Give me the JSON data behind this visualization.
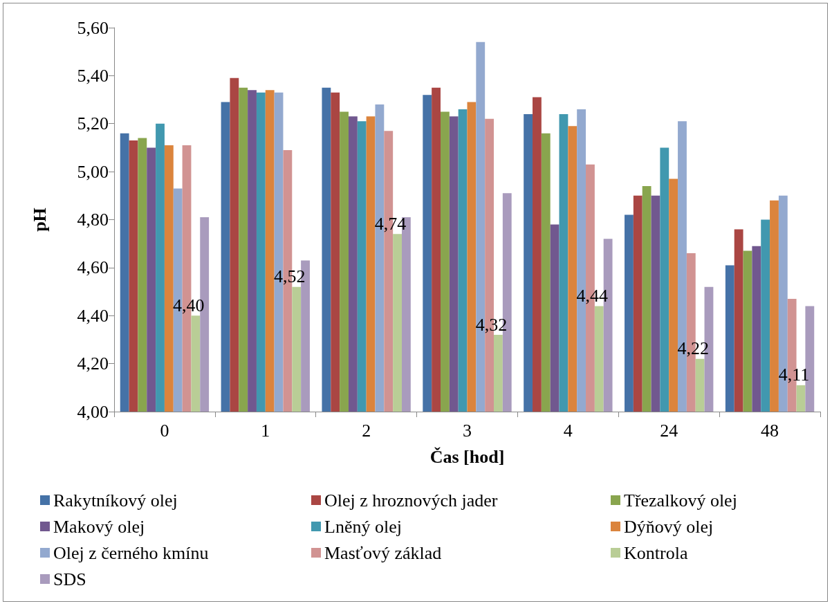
{
  "chart_data": {
    "type": "bar",
    "xlabel": "Čas [hod]",
    "ylabel": "pH",
    "categories": [
      "0",
      "1",
      "2",
      "3",
      "4",
      "24",
      "48"
    ],
    "ylim": [
      4.0,
      5.6
    ],
    "yticks": [
      {
        "value": 4.0,
        "label": "4,00"
      },
      {
        "value": 4.2,
        "label": "4,20"
      },
      {
        "value": 4.4,
        "label": "4,40"
      },
      {
        "value": 4.6,
        "label": "4,60"
      },
      {
        "value": 4.8,
        "label": "4,80"
      },
      {
        "value": 5.0,
        "label": "5,00"
      },
      {
        "value": 5.2,
        "label": "5,20"
      },
      {
        "value": 5.4,
        "label": "5,40"
      },
      {
        "value": 5.6,
        "label": "5,60"
      }
    ],
    "grid": false,
    "legend": "bottom",
    "series": [
      {
        "name": "Rakytníkový olej",
        "color": "#4572a7",
        "values": [
          5.16,
          5.29,
          5.35,
          5.32,
          5.24,
          4.82,
          4.61
        ]
      },
      {
        "name": "Olej z hroznových jader",
        "color": "#aa4643",
        "values": [
          5.13,
          5.39,
          5.33,
          5.35,
          5.31,
          4.9,
          4.76
        ]
      },
      {
        "name": "Třezalkový olej",
        "color": "#89a54e",
        "values": [
          5.14,
          5.35,
          5.25,
          5.25,
          5.16,
          4.94,
          4.67
        ]
      },
      {
        "name": "Makový olej",
        "color": "#71588f",
        "values": [
          5.1,
          5.34,
          5.23,
          5.23,
          4.78,
          4.9,
          4.69
        ]
      },
      {
        "name": "Lněný olej",
        "color": "#4198af",
        "values": [
          5.2,
          5.33,
          5.21,
          5.26,
          5.24,
          5.1,
          4.8
        ]
      },
      {
        "name": "Dýňový olej",
        "color": "#db843d",
        "values": [
          5.11,
          5.34,
          5.23,
          5.29,
          5.19,
          4.97,
          4.88
        ]
      },
      {
        "name": "Olej z černého kmínu",
        "color": "#93a9cf",
        "values": [
          4.93,
          5.33,
          5.28,
          5.54,
          5.26,
          5.21,
          4.9
        ]
      },
      {
        "name": "Masťový základ",
        "color": "#d19392",
        "values": [
          5.11,
          5.09,
          5.17,
          5.22,
          5.03,
          4.66,
          4.47
        ]
      },
      {
        "name": "Kontrola",
        "color": "#b9cd96",
        "values": [
          4.4,
          4.52,
          4.74,
          4.32,
          4.44,
          4.22,
          4.11
        ],
        "value_labels": [
          "4,40",
          "4,52",
          "4,74",
          "4,32",
          "4,44",
          "4,22",
          "4,11"
        ]
      },
      {
        "name": "SDS",
        "color": "#a99bbd",
        "values": [
          4.81,
          4.63,
          4.81,
          4.91,
          4.72,
          4.52,
          4.44
        ]
      }
    ]
  }
}
